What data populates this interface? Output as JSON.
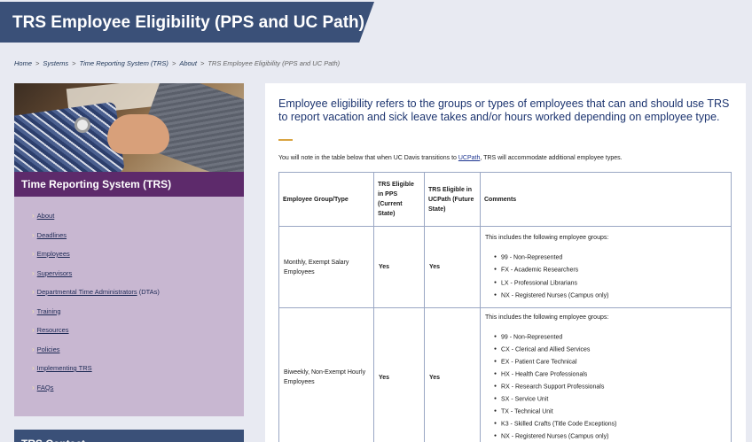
{
  "header": {
    "title": "TRS Employee Eligibility (PPS and UC Path)"
  },
  "breadcrumb": [
    {
      "label": "Home"
    },
    {
      "label": "Systems"
    },
    {
      "label": "Time Reporting System (TRS)"
    },
    {
      "label": "About"
    },
    {
      "label": "TRS Employee Eligibility (PPS and UC Path)"
    }
  ],
  "sidebar": {
    "image_alt": "handshake-photo",
    "heading": "Time Reporting System (TRS)",
    "items": [
      {
        "label": "About",
        "suffix": ""
      },
      {
        "label": "Deadlines",
        "suffix": ""
      },
      {
        "label": "Employees",
        "suffix": ""
      },
      {
        "label": "Supervisors",
        "suffix": ""
      },
      {
        "label": "Departmental Time Administrators",
        "suffix": " (DTAs)"
      },
      {
        "label": "Training",
        "suffix": ""
      },
      {
        "label": "Resources",
        "suffix": ""
      },
      {
        "label": "Policies",
        "suffix": ""
      },
      {
        "label": "Implementing TRS",
        "suffix": ""
      },
      {
        "label": "FAQs",
        "suffix": ""
      }
    ],
    "contact_heading": "TRS Contact"
  },
  "main": {
    "intro": "Employee eligibility refers to the groups or types of employees that can and should use TRS to report vacation and sick leave takes and/or hours worked depending on employee type.",
    "note_before": "You will note in the table below that when UC Davis transitions to ",
    "note_link": "UCPath",
    "note_after": ", TRS will accommodate additional employee types.",
    "table": {
      "headers": [
        "Employee Group/Type",
        "TRS Eligible in PPS (Current State)",
        "TRS Eligible in UCPath (Future State)",
        "Comments"
      ],
      "rows": [
        {
          "group": "Monthly, Exempt Salary Employees",
          "pps": "Yes",
          "ucpath": "Yes",
          "comment_intro": "This includes the following employee groups:",
          "items": [
            "99 - Non-Represented",
            "FX - Academic Researchers",
            "LX - Professional Librarians",
            "NX - Registered Nurses (Campus only)"
          ]
        },
        {
          "group": "Biweekly, Non-Exempt Hourly Employees",
          "pps": "Yes",
          "ucpath": "Yes",
          "comment_intro": "This includes the following employee groups:",
          "items": [
            "99 - Non-Represented",
            "CX - Clerical and Allied Services",
            "EX - Patient Care Technical",
            "HX - Health Care Professionals",
            "RX - Research Support Professionals",
            "SX - Service Unit",
            "TX - Technical Unit",
            "K3 - Skilled Crafts (Title Code Exceptions)",
            "NX - Registered Nurses (Campus only)"
          ]
        }
      ]
    }
  },
  "colors": {
    "title_banner": "#3a5078",
    "sidebar_heading": "#5d2a6b",
    "sidebar_bg": "#c8b7d1",
    "intro_text": "#1d3570",
    "accent_rule": "#d9a441"
  }
}
